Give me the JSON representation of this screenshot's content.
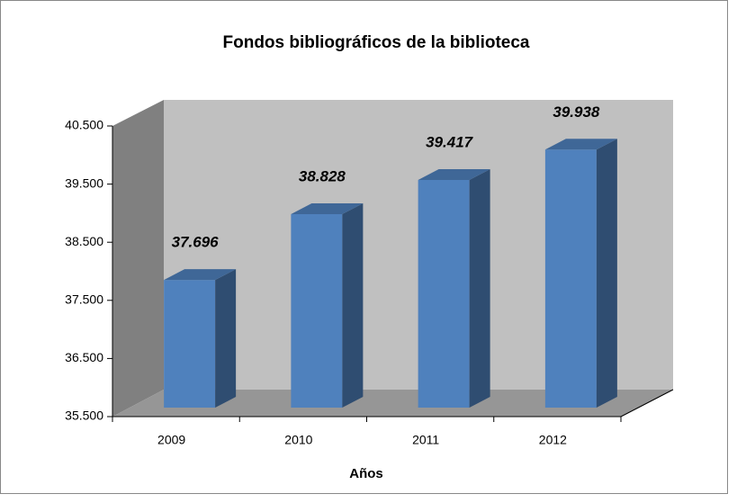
{
  "chart_data": {
    "type": "bar3d",
    "title": "Fondos bibliográficos de la biblioteca",
    "x_label": "Años",
    "categories": [
      "2009",
      "2010",
      "2011",
      "2012"
    ],
    "values": [
      37696,
      38828,
      39417,
      39938
    ],
    "value_labels": [
      "37.696",
      "38.828",
      "39.417",
      "39.938"
    ],
    "color": "#4f81bd",
    "ylim": [
      35500,
      40500
    ],
    "yticks": [
      {
        "value": 35500,
        "label": "35.500"
      },
      {
        "value": 36500,
        "label": "36.500"
      },
      {
        "value": 37500,
        "label": "37.500"
      },
      {
        "value": 38500,
        "label": "38.500"
      },
      {
        "value": 39500,
        "label": "39.500"
      },
      {
        "value": 40500,
        "label": "40.500"
      }
    ]
  }
}
